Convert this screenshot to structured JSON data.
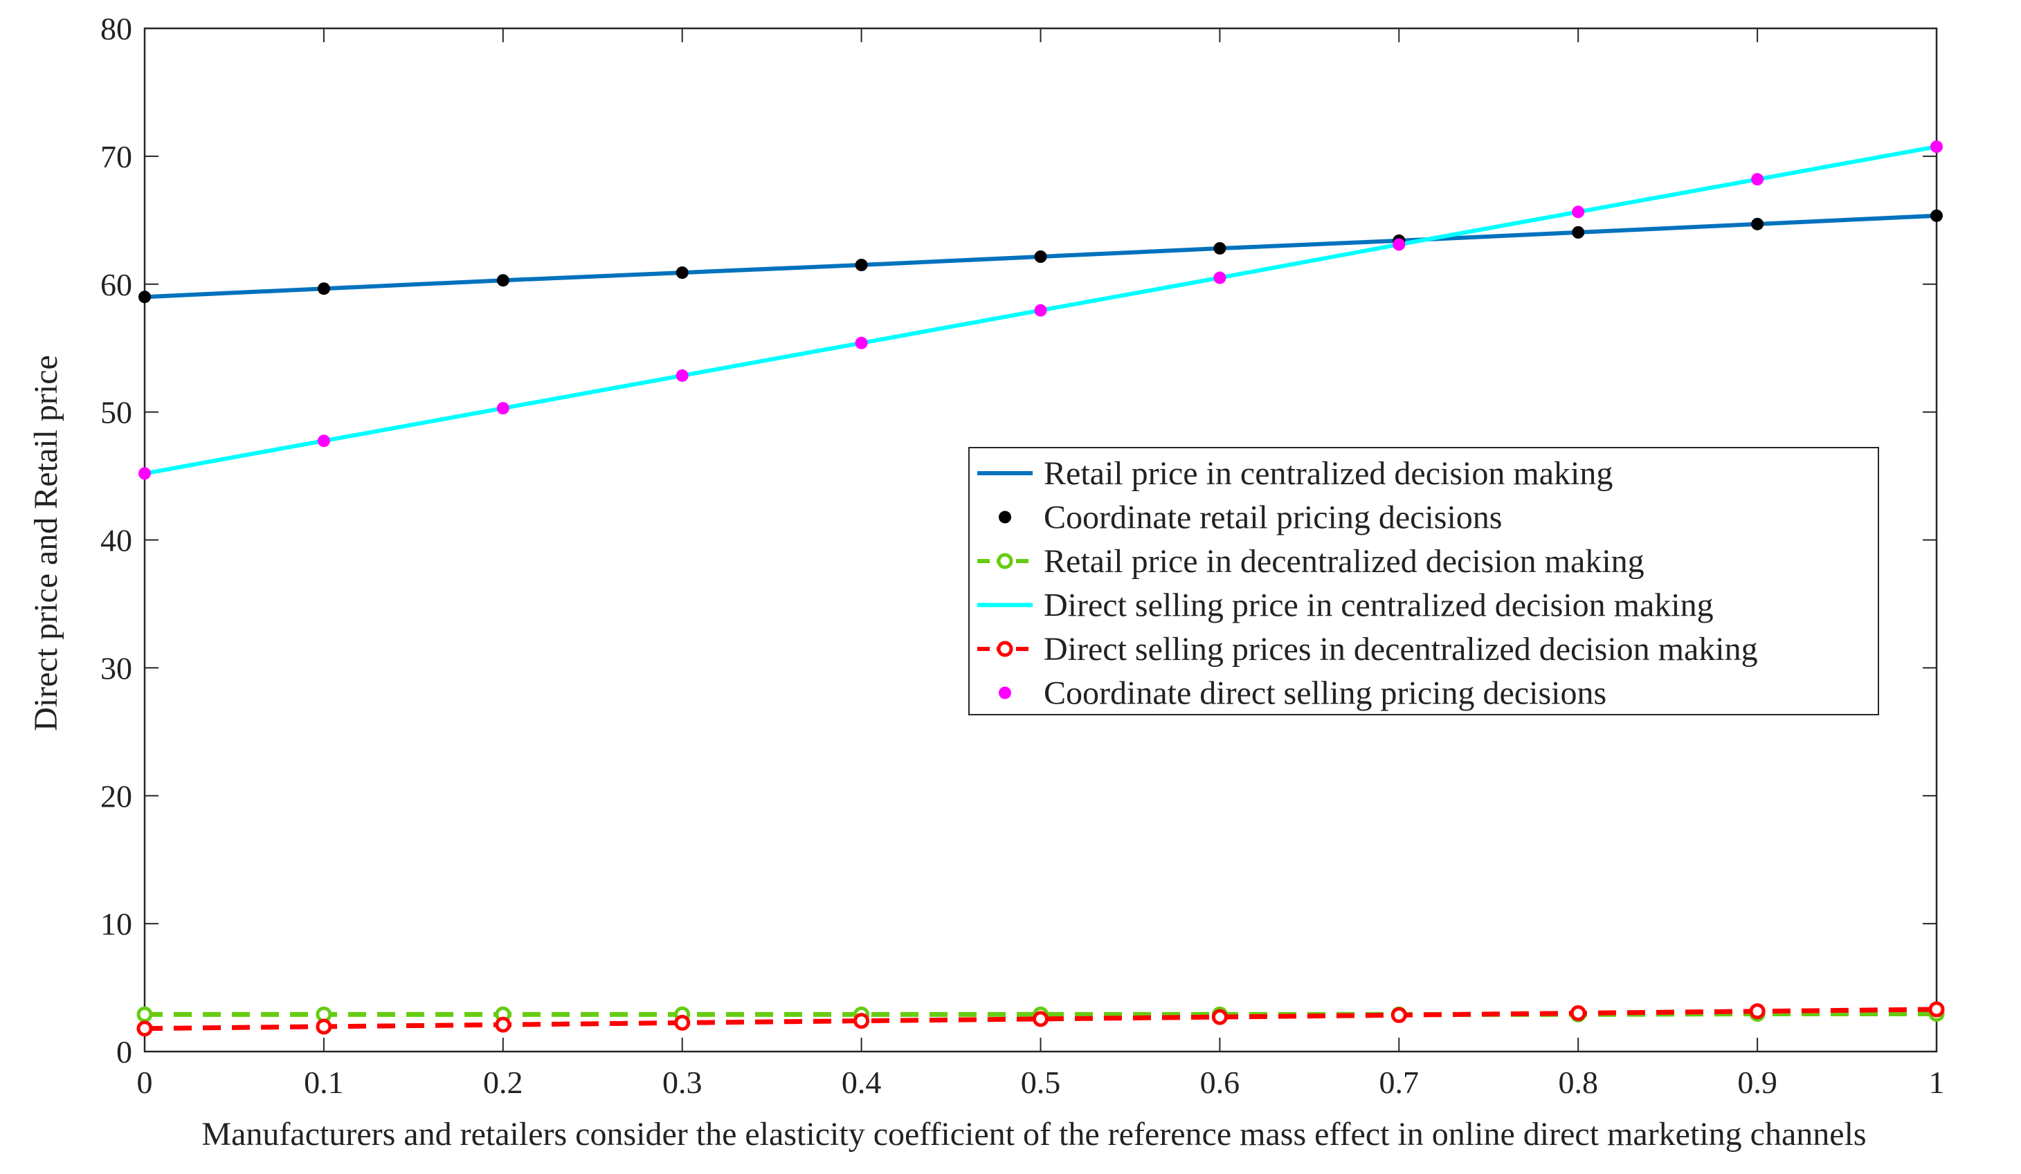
{
  "chart_data": {
    "type": "line",
    "title": "",
    "xlabel": "Manufacturers and retailers consider the elasticity coefficient of the reference mass effect in online direct marketing channels",
    "ylabel": "Direct price and Retail price",
    "xlim": [
      0,
      1
    ],
    "ylim": [
      0,
      80
    ],
    "x": [
      0,
      0.1,
      0.2,
      0.3,
      0.4,
      0.5,
      0.6,
      0.7,
      0.8,
      0.9,
      1
    ],
    "x_tick_labels": [
      "0",
      "0.1",
      "0.2",
      "0.3",
      "0.4",
      "0.5",
      "0.6",
      "0.7",
      "0.8",
      "0.9",
      "1"
    ],
    "y_ticks": [
      0,
      10,
      20,
      30,
      40,
      50,
      60,
      70,
      80
    ],
    "y_tick_labels": [
      "0",
      "10",
      "20",
      "30",
      "40",
      "50",
      "60",
      "70",
      "80"
    ],
    "grid": false,
    "legend_position": "center-right",
    "series": [
      {
        "name": "Retail price in centralized decision making",
        "style": "solid-line",
        "color": "#0072BD",
        "values": [
          59.0,
          59.65,
          60.3,
          60.9,
          61.5,
          62.15,
          62.8,
          63.4,
          64.05,
          64.7,
          65.35
        ]
      },
      {
        "name": "Coordinate retail pricing decisions",
        "style": "dots",
        "color": "#000000",
        "values": [
          59.0,
          59.65,
          60.3,
          60.9,
          61.5,
          62.15,
          62.8,
          63.4,
          64.05,
          64.7,
          65.35
        ]
      },
      {
        "name": "Retail price in decentralized decision making",
        "style": "dashed-line-open-circles",
        "color": "#66CC11",
        "values": [
          2.9,
          2.9,
          2.9,
          2.9,
          2.9,
          2.9,
          2.9,
          2.9,
          2.9,
          2.95,
          2.95
        ]
      },
      {
        "name": "Direct selling price in centralized decision making",
        "style": "solid-line",
        "color": "#00FFFF",
        "values": [
          45.2,
          47.75,
          50.3,
          52.85,
          55.4,
          57.95,
          60.5,
          63.1,
          65.65,
          68.2,
          70.75
        ]
      },
      {
        "name": "Direct selling prices in decentralized decision making",
        "style": "dashed-line-open-circles",
        "color": "#FF0000",
        "values": [
          1.8,
          1.95,
          2.1,
          2.25,
          2.4,
          2.55,
          2.7,
          2.85,
          3.0,
          3.15,
          3.3
        ]
      },
      {
        "name": "Coordinate direct selling pricing decisions",
        "style": "dots",
        "color": "#FF00FF",
        "values": [
          45.2,
          47.75,
          50.3,
          52.85,
          55.4,
          57.95,
          60.5,
          63.1,
          65.65,
          68.2,
          70.75
        ]
      }
    ]
  }
}
